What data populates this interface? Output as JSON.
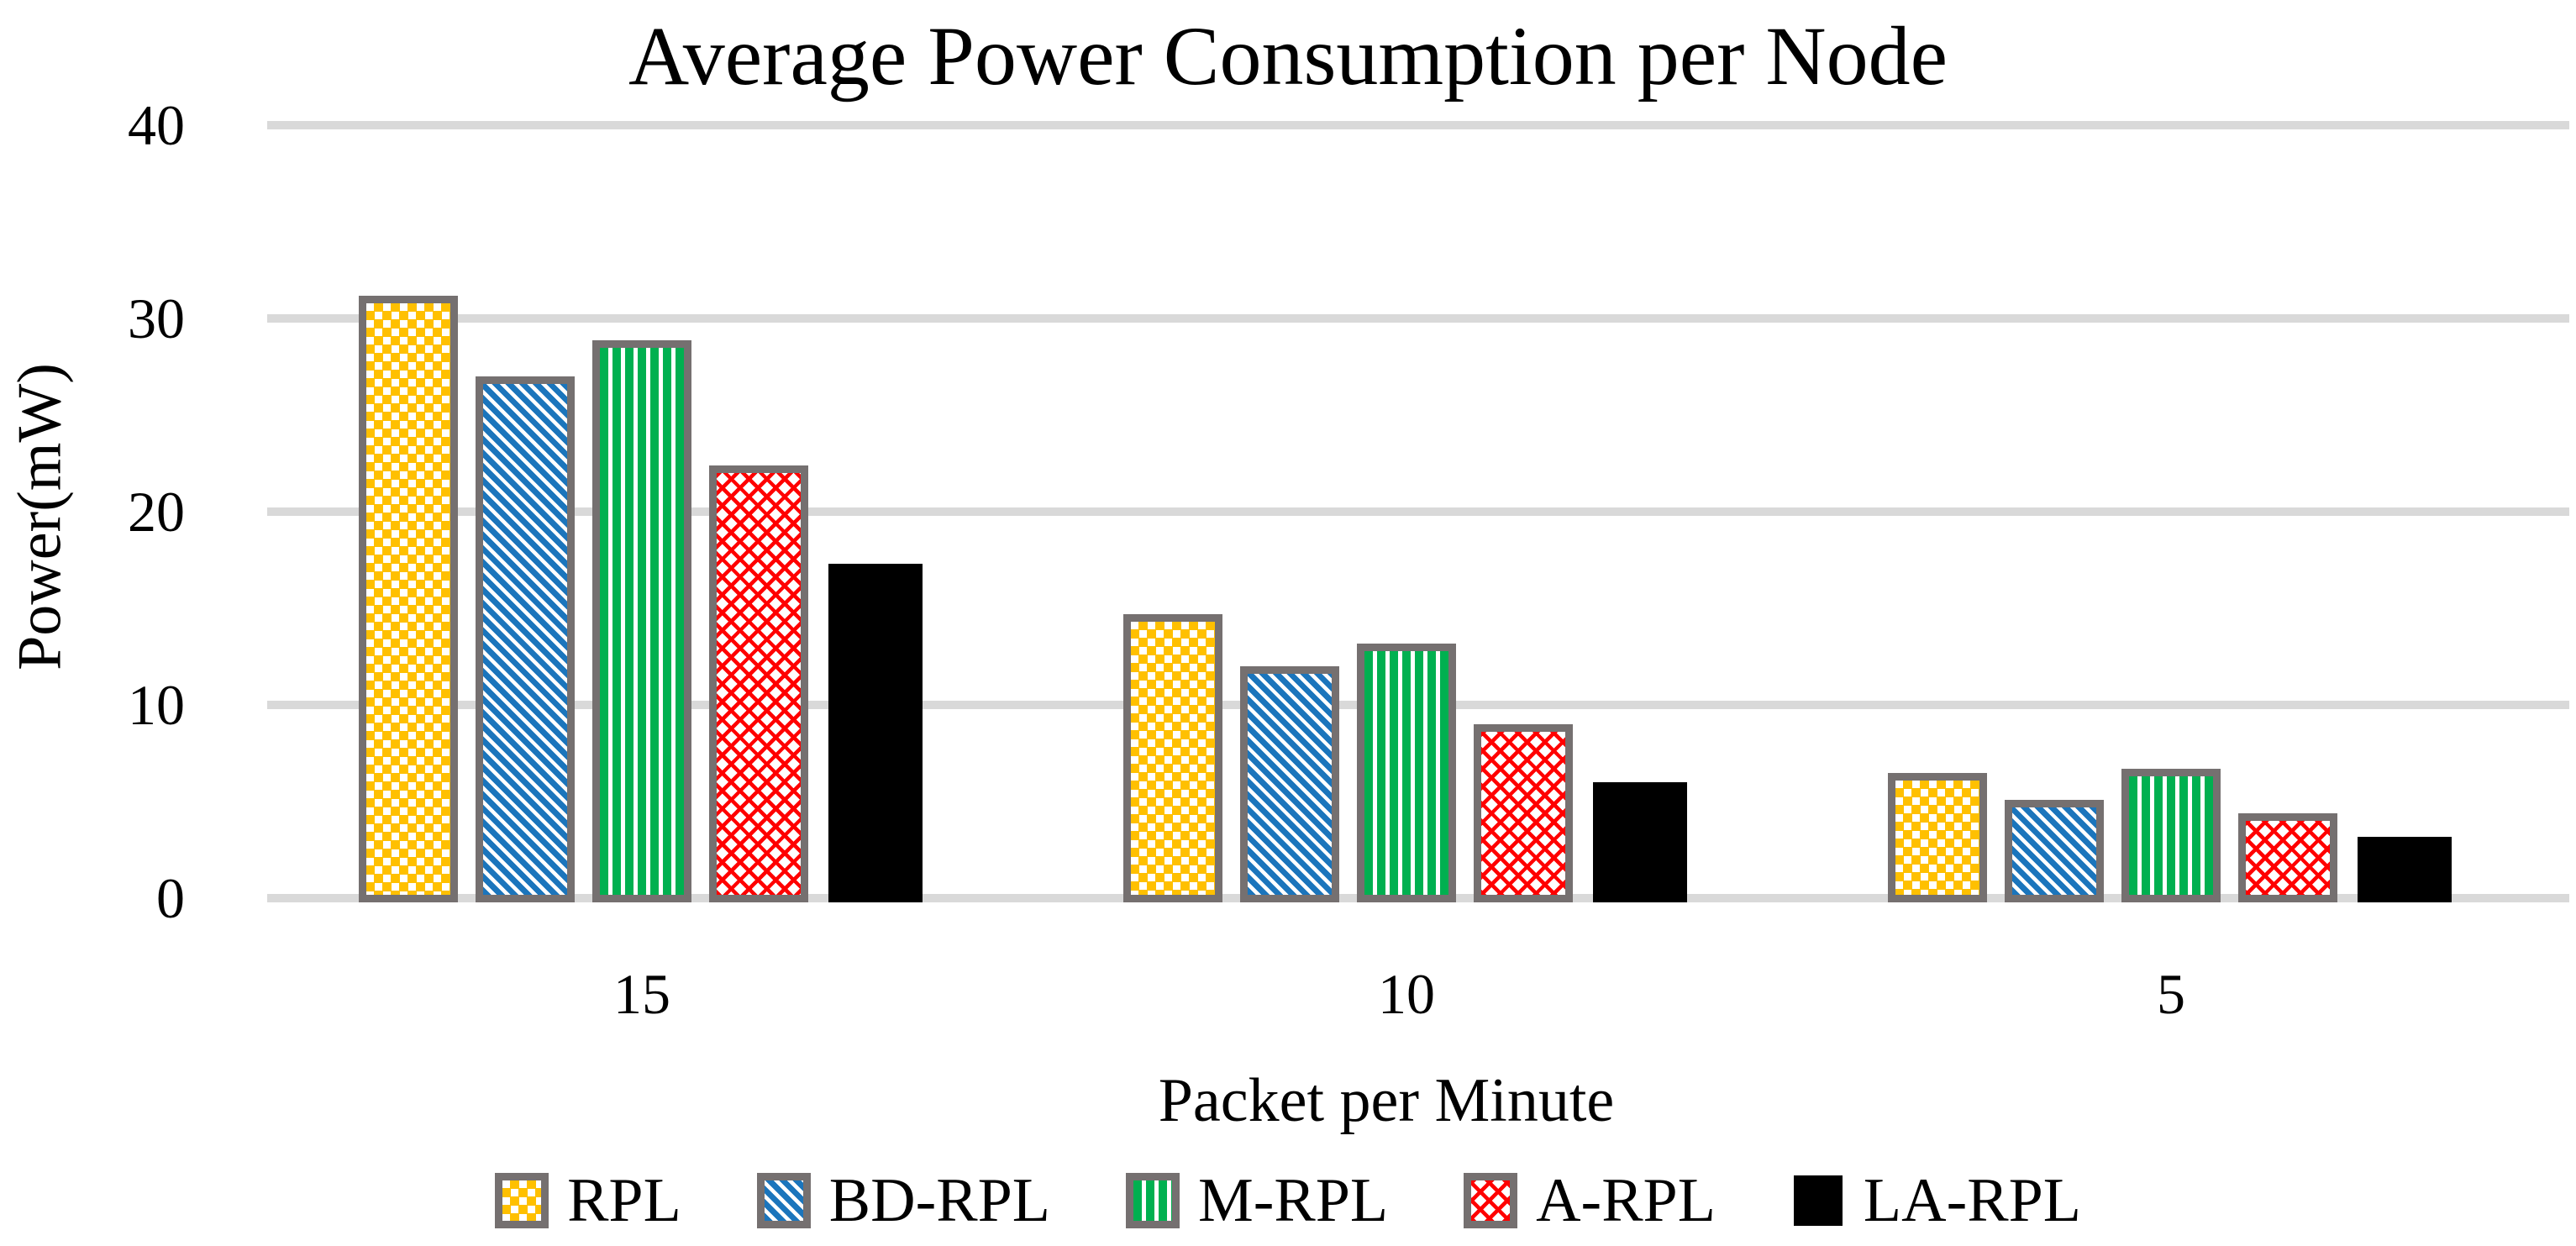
{
  "title": "Average Power Consumption per Node",
  "y_axis": {
    "label": "Power(mW)",
    "ticks": [
      "40",
      "30",
      "20",
      "10",
      "0"
    ]
  },
  "x_axis": {
    "label": "Packet per Minute",
    "categories": [
      "15",
      "10",
      "5"
    ]
  },
  "legend": {
    "items": [
      "RPL",
      "BD-RPL",
      "M-RPL",
      "A-RPL",
      "LA-RPL"
    ]
  },
  "colors": {
    "background": "#FFFFFF",
    "text": "#000000",
    "gridline": "#D9D9D9",
    "bar_border": "#757070",
    "rpl_gold": "#FFC000",
    "bd_rpl_blue": "#1B75BC",
    "m_rpl_green": "#00B050",
    "a_rpl_red": "#FF0000",
    "la_rpl_black": "#000000"
  },
  "chart_data": {
    "type": "bar",
    "title": "Average Power Consumption per Node",
    "xlabel": "Packet per Minute",
    "ylabel": "Power(mW)",
    "categories": [
      "15",
      "10",
      "5"
    ],
    "yticks": [
      0,
      10,
      20,
      30,
      40
    ],
    "ylim": [
      0,
      40
    ],
    "grid": true,
    "gridline_color": "#D9D9D9",
    "legend_position": "bottom",
    "series": [
      {
        "name": "RPL",
        "pattern": "checker",
        "color": "#FFC000",
        "values": [
          31.4,
          14.9,
          6.7
        ]
      },
      {
        "name": "BD-RPL",
        "pattern": "diagonal",
        "color": "#1B75BC",
        "values": [
          27.2,
          12.2,
          5.3
        ]
      },
      {
        "name": "M-RPL",
        "pattern": "vstripes",
        "color": "#00B050",
        "values": [
          29.1,
          13.4,
          6.9
        ]
      },
      {
        "name": "A-RPL",
        "pattern": "zigzag",
        "color": "#FF0000",
        "values": [
          22.6,
          9.2,
          4.6
        ]
      },
      {
        "name": "LA-RPL",
        "pattern": "solid",
        "color": "#000000",
        "values": [
          17.5,
          6.2,
          3.4
        ]
      }
    ]
  }
}
